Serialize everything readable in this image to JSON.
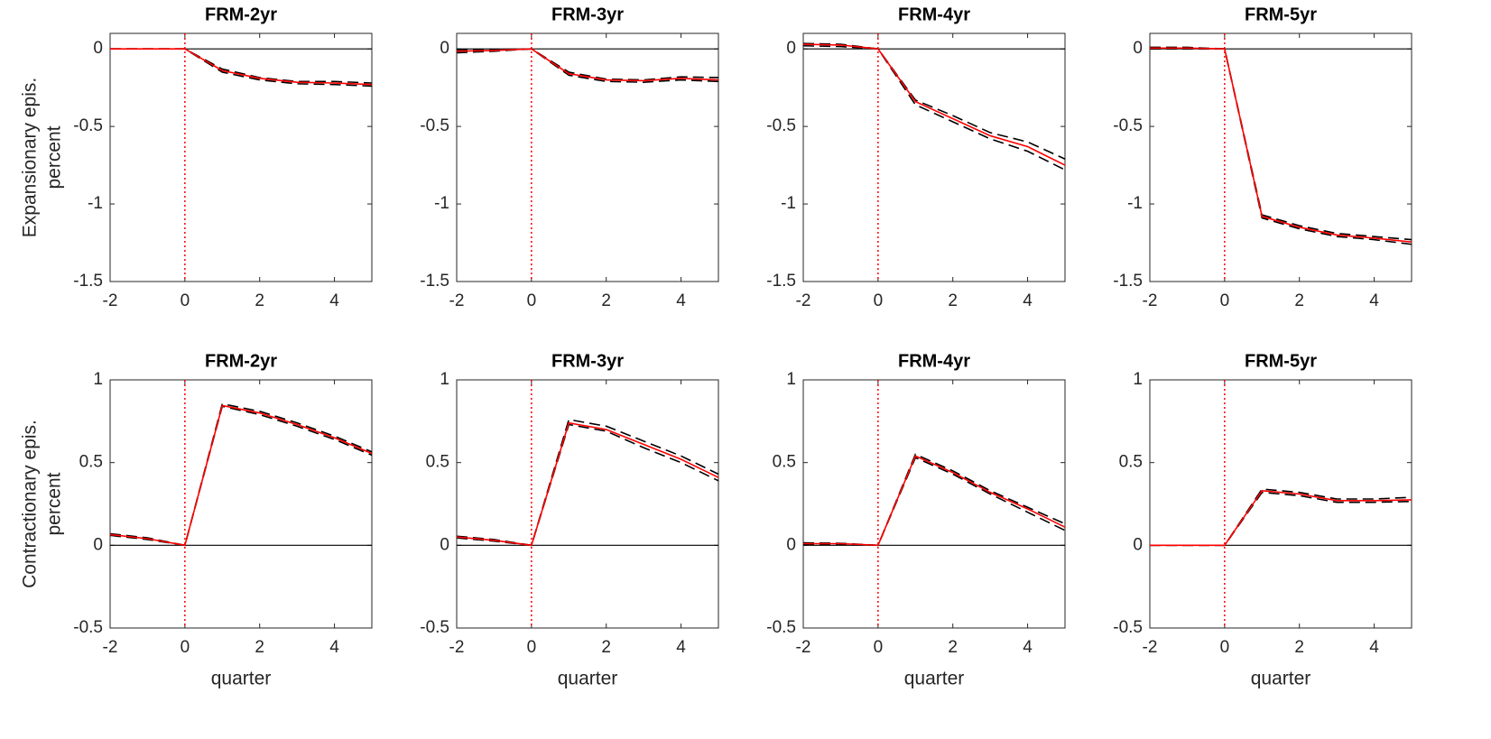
{
  "chart_data": [
    {
      "type": "line",
      "title": "FRM-2yr",
      "ylabel": [
        "Expansionary epis.",
        "percent"
      ],
      "x": [
        -2,
        -1,
        0,
        1,
        2,
        3,
        4,
        5
      ],
      "xlim": [
        -2,
        5
      ],
      "xticks": [
        -2,
        0,
        2,
        4
      ],
      "ylim": [
        -1.5,
        0.1
      ],
      "yticks": [
        -1.5,
        -1,
        -0.5,
        0
      ],
      "hline": 0,
      "vline": 0,
      "series": [
        {
          "color": "#000000",
          "style": "dashed",
          "values": [
            0,
            0,
            0,
            -0.15,
            -0.2,
            -0.225,
            -0.23,
            -0.24
          ]
        },
        {
          "color": "#000000",
          "style": "dashed",
          "values": [
            0,
            0,
            0,
            -0.13,
            -0.185,
            -0.21,
            -0.21,
            -0.22
          ]
        },
        {
          "color": "#ff0000",
          "style": "solid",
          "values": [
            0,
            0,
            0,
            -0.14,
            -0.19,
            -0.215,
            -0.22,
            -0.23
          ]
        }
      ]
    },
    {
      "type": "line",
      "title": "FRM-3yr",
      "x": [
        -2,
        -1,
        0,
        1,
        2,
        3,
        4,
        5
      ],
      "xlim": [
        -2,
        5
      ],
      "xticks": [
        -2,
        0,
        2,
        4
      ],
      "ylim": [
        -1.5,
        0.1
      ],
      "yticks": [
        -1.5,
        -1,
        -0.5,
        0
      ],
      "hline": 0,
      "vline": 0,
      "series": [
        {
          "color": "#000000",
          "style": "dashed",
          "values": [
            -0.025,
            -0.015,
            0,
            -0.17,
            -0.21,
            -0.215,
            -0.2,
            -0.21
          ]
        },
        {
          "color": "#000000",
          "style": "dashed",
          "values": [
            -0.005,
            -0.005,
            0,
            -0.15,
            -0.195,
            -0.2,
            -0.18,
            -0.185
          ]
        },
        {
          "color": "#ff0000",
          "style": "solid",
          "values": [
            -0.015,
            -0.01,
            0,
            -0.16,
            -0.2,
            -0.205,
            -0.19,
            -0.2
          ]
        }
      ]
    },
    {
      "type": "line",
      "title": "FRM-4yr",
      "x": [
        -2,
        -1,
        0,
        1,
        2,
        3,
        4,
        5
      ],
      "xlim": [
        -2,
        5
      ],
      "xticks": [
        -2,
        0,
        2,
        4
      ],
      "ylim": [
        -1.5,
        0.1
      ],
      "yticks": [
        -1.5,
        -1,
        -0.5,
        0
      ],
      "hline": 0,
      "vline": 0,
      "series": [
        {
          "color": "#000000",
          "style": "dashed",
          "values": [
            0.02,
            0.015,
            0,
            -0.36,
            -0.47,
            -0.58,
            -0.66,
            -0.78
          ]
        },
        {
          "color": "#000000",
          "style": "dashed",
          "values": [
            0.035,
            0.03,
            0,
            -0.33,
            -0.43,
            -0.54,
            -0.6,
            -0.71
          ]
        },
        {
          "color": "#ff0000",
          "style": "solid",
          "values": [
            0.03,
            0.025,
            0,
            -0.34,
            -0.45,
            -0.56,
            -0.63,
            -0.75
          ]
        }
      ]
    },
    {
      "type": "line",
      "title": "FRM-5yr",
      "x": [
        -2,
        -1,
        0,
        1,
        2,
        3,
        4,
        5
      ],
      "xlim": [
        -2,
        5
      ],
      "xticks": [
        -2,
        0,
        2,
        4
      ],
      "ylim": [
        -1.5,
        0.1
      ],
      "yticks": [
        -1.5,
        -1,
        -0.5,
        0
      ],
      "hline": 0,
      "vline": 0,
      "series": [
        {
          "color": "#000000",
          "style": "dashed",
          "values": [
            0,
            0,
            0,
            -1.09,
            -1.16,
            -1.21,
            -1.23,
            -1.26
          ]
        },
        {
          "color": "#000000",
          "style": "dashed",
          "values": [
            0.01,
            0.01,
            0,
            -1.07,
            -1.14,
            -1.19,
            -1.21,
            -1.23
          ]
        },
        {
          "color": "#ff0000",
          "style": "solid",
          "values": [
            0.005,
            0.005,
            0,
            -1.08,
            -1.15,
            -1.2,
            -1.22,
            -1.245
          ]
        }
      ]
    },
    {
      "type": "line",
      "title": "FRM-2yr",
      "ylabel": [
        "Contractionary epis.",
        "percent"
      ],
      "xlabel": "quarter",
      "x": [
        -2,
        -1,
        0,
        1,
        2,
        3,
        4,
        5
      ],
      "xlim": [
        -2,
        5
      ],
      "xticks": [
        -2,
        0,
        2,
        4
      ],
      "ylim": [
        -0.5,
        1
      ],
      "yticks": [
        -0.5,
        0,
        0.5,
        1
      ],
      "hline": 0,
      "vline": 0,
      "series": [
        {
          "color": "#000000",
          "style": "dashed",
          "values": [
            0.06,
            0.035,
            0,
            0.84,
            0.79,
            0.72,
            0.64,
            0.545
          ]
        },
        {
          "color": "#000000",
          "style": "dashed",
          "values": [
            0.07,
            0.045,
            0,
            0.855,
            0.81,
            0.74,
            0.66,
            0.565
          ]
        },
        {
          "color": "#ff0000",
          "style": "solid",
          "values": [
            0.065,
            0.04,
            0,
            0.845,
            0.8,
            0.73,
            0.65,
            0.555
          ]
        }
      ]
    },
    {
      "type": "line",
      "title": "FRM-3yr",
      "xlabel": "quarter",
      "x": [
        -2,
        -1,
        0,
        1,
        2,
        3,
        4,
        5
      ],
      "xlim": [
        -2,
        5
      ],
      "xticks": [
        -2,
        0,
        2,
        4
      ],
      "ylim": [
        -0.5,
        1
      ],
      "yticks": [
        -0.5,
        0,
        0.5,
        1
      ],
      "hline": 0,
      "vline": 0,
      "series": [
        {
          "color": "#000000",
          "style": "dashed",
          "values": [
            0.045,
            0.025,
            0,
            0.73,
            0.69,
            0.59,
            0.5,
            0.39
          ]
        },
        {
          "color": "#000000",
          "style": "dashed",
          "values": [
            0.055,
            0.035,
            0,
            0.76,
            0.72,
            0.63,
            0.54,
            0.43
          ]
        },
        {
          "color": "#ff0000",
          "style": "solid",
          "values": [
            0.05,
            0.03,
            0,
            0.74,
            0.7,
            0.61,
            0.52,
            0.41
          ]
        }
      ]
    },
    {
      "type": "line",
      "title": "FRM-4yr",
      "xlabel": "quarter",
      "x": [
        -2,
        -1,
        0,
        1,
        2,
        3,
        4,
        5
      ],
      "xlim": [
        -2,
        5
      ],
      "xticks": [
        -2,
        0,
        2,
        4
      ],
      "ylim": [
        -0.5,
        1
      ],
      "yticks": [
        -0.5,
        0,
        0.5,
        1
      ],
      "hline": 0,
      "vline": 0,
      "series": [
        {
          "color": "#000000",
          "style": "dashed",
          "values": [
            0.005,
            0.005,
            0,
            0.53,
            0.43,
            0.31,
            0.2,
            0.09
          ]
        },
        {
          "color": "#000000",
          "style": "dashed",
          "values": [
            0.015,
            0.012,
            0,
            0.55,
            0.45,
            0.33,
            0.23,
            0.13
          ]
        },
        {
          "color": "#ff0000",
          "style": "solid",
          "values": [
            0.01,
            0.01,
            0,
            0.54,
            0.44,
            0.32,
            0.22,
            0.11
          ]
        }
      ]
    },
    {
      "type": "line",
      "title": "FRM-5yr",
      "xlabel": "quarter",
      "x": [
        -2,
        -1,
        0,
        1,
        2,
        3,
        4,
        5
      ],
      "xlim": [
        -2,
        5
      ],
      "xticks": [
        -2,
        0,
        2,
        4
      ],
      "ylim": [
        -0.5,
        1
      ],
      "yticks": [
        -0.5,
        0,
        0.5,
        1
      ],
      "hline": 0,
      "vline": 0,
      "series": [
        {
          "color": "#000000",
          "style": "dashed",
          "values": [
            0,
            0,
            0,
            0.32,
            0.3,
            0.26,
            0.26,
            0.265
          ]
        },
        {
          "color": "#000000",
          "style": "dashed",
          "values": [
            0,
            0,
            0,
            0.34,
            0.32,
            0.28,
            0.28,
            0.29
          ]
        },
        {
          "color": "#ff0000",
          "style": "solid",
          "values": [
            0,
            0,
            0,
            0.33,
            0.31,
            0.27,
            0.27,
            0.275
          ]
        }
      ]
    }
  ]
}
